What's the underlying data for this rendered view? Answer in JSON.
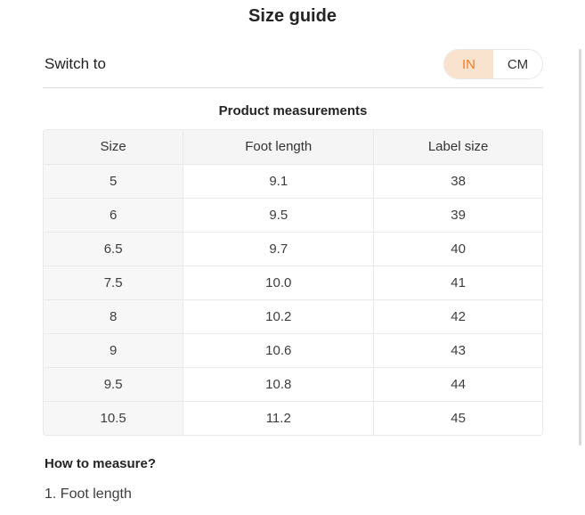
{
  "title": "Size guide",
  "unit_switch": {
    "label": "Switch to",
    "options": [
      {
        "label": "IN",
        "selected": true
      },
      {
        "label": "CM",
        "selected": false
      }
    ],
    "selected_bg_color": "#fae3ce",
    "selected_text_color": "#f07b28"
  },
  "table": {
    "caption": "Product measurements",
    "headers": [
      "Size",
      "Foot length",
      "Label size"
    ],
    "rows": [
      [
        "5",
        "9.1",
        "38"
      ],
      [
        "6",
        "9.5",
        "39"
      ],
      [
        "6.5",
        "9.7",
        "40"
      ],
      [
        "7.5",
        "10.0",
        "41"
      ],
      [
        "8",
        "10.2",
        "42"
      ],
      [
        "9",
        "10.6",
        "43"
      ],
      [
        "9.5",
        "10.8",
        "44"
      ],
      [
        "10.5",
        "11.2",
        "45"
      ]
    ]
  },
  "how_to_measure": {
    "heading": "How to measure?",
    "items": [
      "1. Foot length"
    ]
  }
}
